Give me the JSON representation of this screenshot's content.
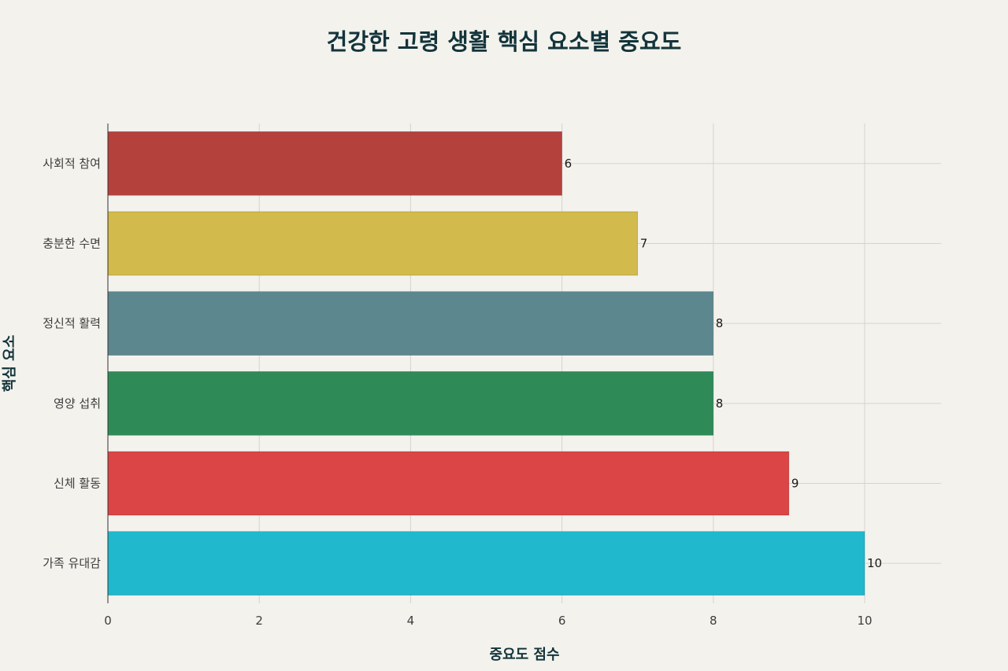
{
  "chart_data": {
    "type": "bar",
    "orientation": "horizontal",
    "title": "건강한 고령 생활 핵심 요소별 중요도",
    "xlabel": "중요도 점수",
    "ylabel": "핵심 요소",
    "categories": [
      "가족 유대감",
      "신체 활동",
      "영양 섭취",
      "정신적 활력",
      "충분한 수면",
      "사회적 참여"
    ],
    "values": [
      10,
      9,
      8,
      8,
      7,
      6
    ],
    "colors": [
      "#1fb8cd",
      "#db4545",
      "#2e8b57",
      "#5d878f",
      "#d2ba4c",
      "#b4413c"
    ],
    "xlim": [
      0,
      11
    ],
    "xticks": [
      0,
      2,
      4,
      6,
      8,
      10
    ],
    "grid": true,
    "legend": false,
    "data_labels": true
  }
}
